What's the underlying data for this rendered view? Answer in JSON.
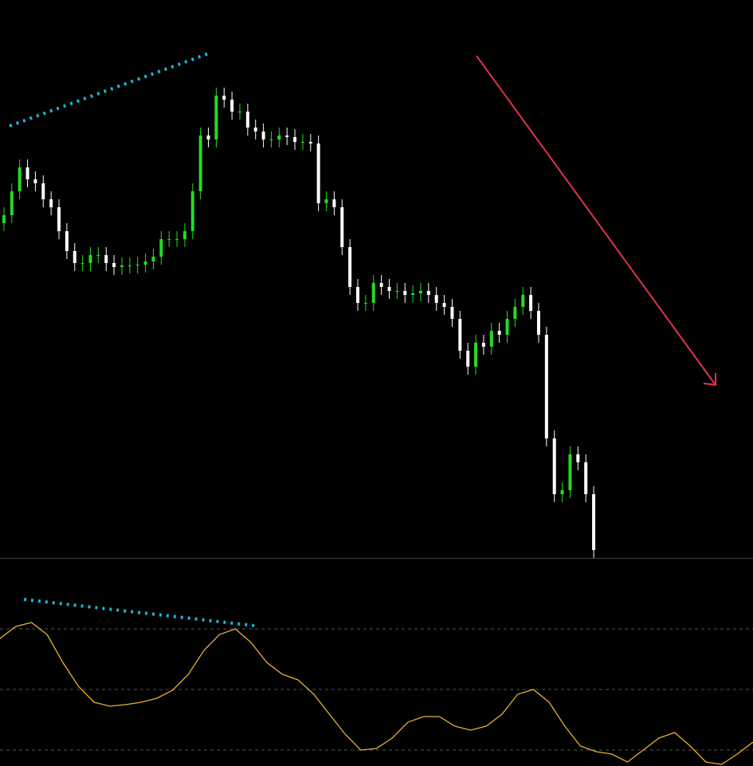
{
  "chart_data": [
    {
      "type": "candlestick",
      "up_color": "#22dd22",
      "down_color": "#ffffff",
      "ylim": [
        0,
        700
      ],
      "open": [
        420,
        430,
        460,
        490,
        475,
        470,
        450,
        440,
        410,
        385,
        370,
        370,
        380,
        380,
        370,
        365,
        367,
        367,
        368,
        372,
        378,
        400,
        400,
        400,
        410,
        460,
        530,
        525,
        580,
        575,
        560,
        560,
        540,
        535,
        525,
        525,
        530,
        528,
        522,
        522,
        520,
        445,
        450,
        440,
        390,
        340,
        320,
        320,
        345,
        340,
        335,
        335,
        330,
        332,
        335,
        330,
        320,
        315,
        300,
        260,
        240,
        270,
        265,
        285,
        280,
        300,
        315,
        330,
        310,
        280,
        150,
        80,
        85,
        130,
        120,
        80
      ],
      "high": [
        440,
        470,
        500,
        500,
        485,
        480,
        460,
        450,
        420,
        395,
        380,
        390,
        390,
        390,
        380,
        377,
        377,
        378,
        382,
        388,
        410,
        410,
        410,
        420,
        470,
        540,
        540,
        590,
        590,
        585,
        570,
        570,
        550,
        545,
        535,
        540,
        540,
        538,
        532,
        532,
        530,
        460,
        460,
        450,
        400,
        350,
        330,
        355,
        355,
        350,
        345,
        345,
        342,
        345,
        345,
        340,
        330,
        325,
        310,
        270,
        280,
        280,
        295,
        295,
        310,
        325,
        340,
        340,
        320,
        290,
        160,
        95,
        140,
        140,
        130,
        90
      ],
      "low": [
        410,
        420,
        450,
        465,
        460,
        440,
        430,
        400,
        375,
        360,
        360,
        360,
        370,
        360,
        355,
        355,
        357,
        357,
        358,
        362,
        368,
        390,
        390,
        390,
        400,
        450,
        515,
        515,
        565,
        550,
        550,
        530,
        525,
        515,
        515,
        515,
        518,
        512,
        512,
        510,
        435,
        435,
        430,
        380,
        330,
        310,
        310,
        310,
        330,
        325,
        325,
        320,
        320,
        322,
        320,
        310,
        305,
        290,
        250,
        230,
        230,
        255,
        255,
        270,
        270,
        290,
        305,
        300,
        270,
        140,
        70,
        70,
        75,
        110,
        70,
        0
      ],
      "close": [
        430,
        460,
        490,
        475,
        470,
        450,
        440,
        410,
        385,
        370,
        370,
        380,
        380,
        370,
        365,
        367,
        367,
        368,
        372,
        378,
        400,
        400,
        400,
        410,
        460,
        530,
        525,
        580,
        575,
        560,
        560,
        540,
        535,
        525,
        525,
        530,
        528,
        522,
        522,
        520,
        445,
        450,
        440,
        390,
        340,
        320,
        320,
        345,
        340,
        335,
        335,
        330,
        332,
        335,
        330,
        320,
        315,
        300,
        260,
        240,
        270,
        265,
        285,
        280,
        300,
        315,
        330,
        310,
        280,
        150,
        80,
        85,
        130,
        120,
        80,
        10
      ]
    },
    {
      "type": "line",
      "color": "#e8b030",
      "ylim": [
        0,
        261
      ],
      "levels": [
        172,
        96,
        20
      ],
      "values": [
        160,
        175,
        180,
        165,
        130,
        100,
        80,
        75,
        77,
        80,
        85,
        95,
        115,
        145,
        165,
        172,
        155,
        130,
        115,
        108,
        90,
        65,
        40,
        20,
        22,
        35,
        55,
        62,
        62,
        50,
        45,
        50,
        65,
        90,
        96,
        80,
        50,
        25,
        18,
        15,
        5,
        20,
        35,
        42,
        25,
        5,
        2,
        15,
        30
      ]
    }
  ]
}
